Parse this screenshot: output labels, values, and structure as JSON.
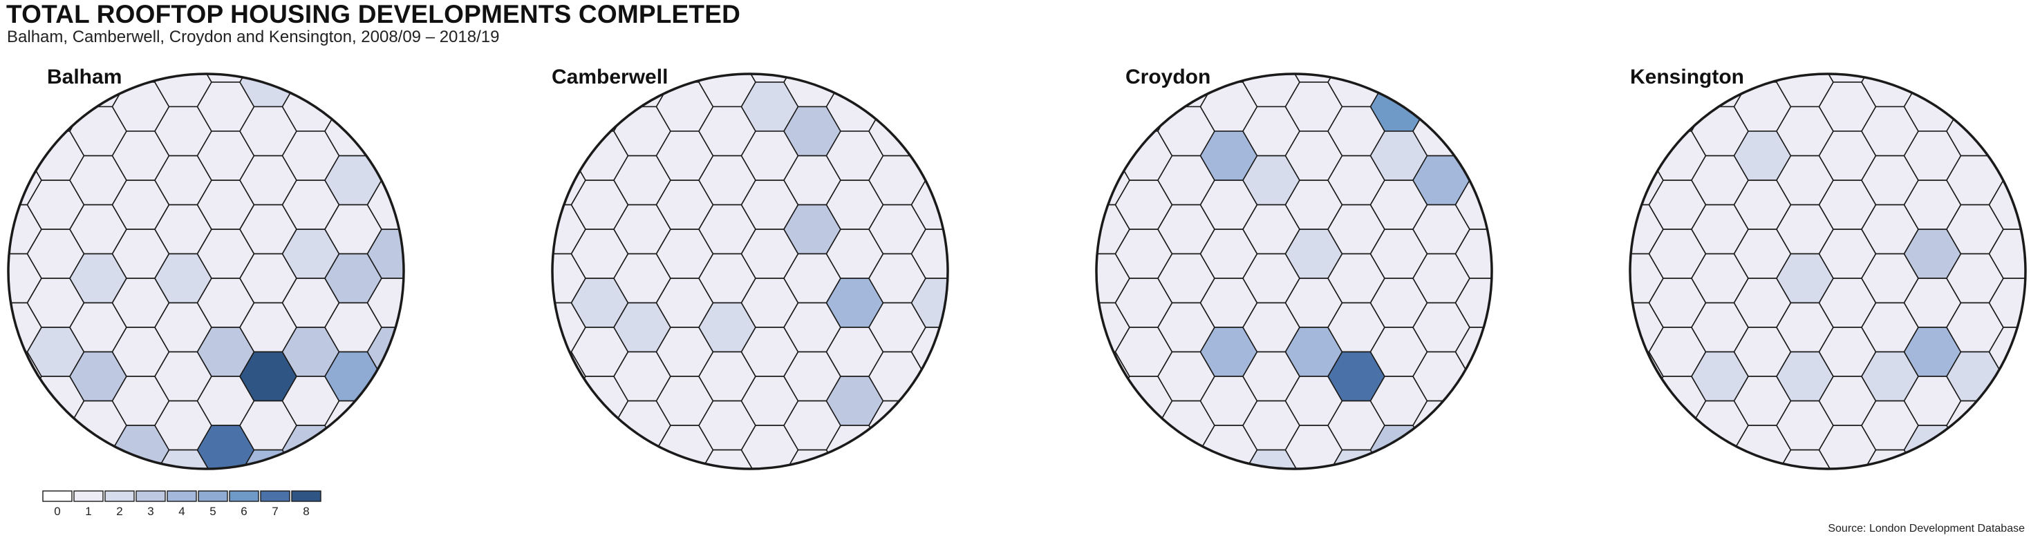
{
  "header": {
    "title": "TOTAL ROOFTOP HOUSING DEVELOPMENTS COMPLETED",
    "subtitle": "Balham, Camberwell, Croydon and Kensington, 2008/09 – 2018/19"
  },
  "source": "Source: London Development Database",
  "colors": {
    "scale": [
      "#ffffff",
      "#eeedf5",
      "#d7dcec",
      "#bec8e0",
      "#a3b8da",
      "#8fabd4",
      "#6f9ac8",
      "#4a72a8",
      "#2f5585"
    ],
    "hex_stroke": "#1a1a1a",
    "circle_stroke": "#1a1a1a"
  },
  "legend": {
    "values": [
      "0",
      "1",
      "2",
      "3",
      "4",
      "5",
      "6",
      "7",
      "8"
    ]
  },
  "panels": [
    {
      "name": "Balham",
      "cells": [
        {
          "c": 6,
          "r": 0,
          "v": 2
        },
        {
          "c": 8,
          "r": 0,
          "v": 2
        },
        {
          "c": 10,
          "r": 0,
          "v": 2
        },
        {
          "c": 9,
          "r": 1,
          "v": 3
        },
        {
          "c": 11,
          "r": 1,
          "v": 2
        },
        {
          "c": 14,
          "r": 1,
          "v": 2
        },
        {
          "c": 8,
          "r": 2,
          "v": 2
        },
        {
          "c": 12,
          "r": 2,
          "v": 2
        },
        {
          "c": 7,
          "r": 3,
          "v": 2
        },
        {
          "c": 9,
          "r": 3,
          "v": 3
        },
        {
          "c": 11,
          "r": 3,
          "v": 2
        },
        {
          "c": 2,
          "r": 4,
          "v": 2
        },
        {
          "c": 4,
          "r": 4,
          "v": 2
        },
        {
          "c": 8,
          "r": 4,
          "v": 3
        },
        {
          "c": 10,
          "r": 4,
          "v": 2
        },
        {
          "c": 1,
          "r": 5,
          "v": 2
        },
        {
          "c": 5,
          "r": 5,
          "v": 3
        },
        {
          "c": 7,
          "r": 5,
          "v": 3
        },
        {
          "c": 9,
          "r": 5,
          "v": 3
        },
        {
          "c": 11,
          "r": 5,
          "v": 5
        },
        {
          "c": 2,
          "r": 6,
          "v": 3
        },
        {
          "c": 6,
          "r": 6,
          "v": 8
        },
        {
          "c": 8,
          "r": 6,
          "v": 5
        },
        {
          "c": 10,
          "r": 6,
          "v": 2
        },
        {
          "c": 3,
          "r": 7,
          "v": 3
        },
        {
          "c": 5,
          "r": 7,
          "v": 7
        },
        {
          "c": 7,
          "r": 7,
          "v": 3
        },
        {
          "c": 9,
          "r": 7,
          "v": 2
        },
        {
          "c": 11,
          "r": 7,
          "v": 2
        },
        {
          "c": 4,
          "r": 8,
          "v": 2
        },
        {
          "c": 6,
          "r": 8,
          "v": 4
        },
        {
          "c": 10,
          "r": 8,
          "v": 2
        }
      ]
    },
    {
      "name": "Camberwell",
      "cells": [
        {
          "c": 5,
          "r": 0,
          "v": 2
        },
        {
          "c": 6,
          "r": 1,
          "v": 3
        },
        {
          "c": 6,
          "r": 3,
          "v": 3
        },
        {
          "c": 10,
          "r": 3,
          "v": 2
        },
        {
          "c": 1,
          "r": 4,
          "v": 2
        },
        {
          "c": 7,
          "r": 4,
          "v": 4
        },
        {
          "c": 9,
          "r": 4,
          "v": 2
        },
        {
          "c": 2,
          "r": 5,
          "v": 2
        },
        {
          "c": 4,
          "r": 5,
          "v": 2
        },
        {
          "c": 10,
          "r": 5,
          "v": 2
        },
        {
          "c": 12,
          "r": 5,
          "v": 2
        },
        {
          "c": 7,
          "r": 6,
          "v": 3
        },
        {
          "c": 9,
          "r": 6,
          "v": 2
        },
        {
          "c": 13,
          "r": 6,
          "v": 2
        },
        {
          "c": 12,
          "r": 8,
          "v": 2
        }
      ]
    },
    {
      "name": "Croydon",
      "cells": [
        {
          "c": 7,
          "r": 0,
          "v": 6
        },
        {
          "c": 11,
          "r": 0,
          "v": 2
        },
        {
          "c": 3,
          "r": 1,
          "v": 4
        },
        {
          "c": 7,
          "r": 1,
          "v": 2
        },
        {
          "c": 11,
          "r": 1,
          "v": 2
        },
        {
          "c": 13,
          "r": 1,
          "v": 2
        },
        {
          "c": 4,
          "r": 2,
          "v": 2
        },
        {
          "c": 8,
          "r": 2,
          "v": 4
        },
        {
          "c": 5,
          "r": 3,
          "v": 2
        },
        {
          "c": 3,
          "r": 5,
          "v": 4
        },
        {
          "c": 5,
          "r": 5,
          "v": 4
        },
        {
          "c": 6,
          "r": 6,
          "v": 7
        },
        {
          "c": 10,
          "r": 6,
          "v": 4
        },
        {
          "c": 7,
          "r": 7,
          "v": 3
        },
        {
          "c": 11,
          "r": 7,
          "v": 2
        },
        {
          "c": 4,
          "r": 8,
          "v": 2
        },
        {
          "c": 6,
          "r": 8,
          "v": 2
        },
        {
          "c": 8,
          "r": 8,
          "v": 2
        },
        {
          "c": 10,
          "r": 8,
          "v": 4
        },
        {
          "c": 7,
          "r": 9,
          "v": 2
        }
      ]
    },
    {
      "name": "Kensington",
      "cells": [
        {
          "c": 3,
          "r": 1,
          "v": 2
        },
        {
          "c": 7,
          "r": 3,
          "v": 3
        },
        {
          "c": 4,
          "r": 4,
          "v": 2
        },
        {
          "c": 10,
          "r": 4,
          "v": 2
        },
        {
          "c": 12,
          "r": 4,
          "v": 2
        },
        {
          "c": 7,
          "r": 5,
          "v": 4
        },
        {
          "c": 11,
          "r": 5,
          "v": 2
        },
        {
          "c": 2,
          "r": 6,
          "v": 2
        },
        {
          "c": 4,
          "r": 6,
          "v": 2
        },
        {
          "c": 6,
          "r": 6,
          "v": 2
        },
        {
          "c": 8,
          "r": 6,
          "v": 2
        },
        {
          "c": 12,
          "r": 6,
          "v": 2
        },
        {
          "c": 14,
          "r": 6,
          "v": 2
        },
        {
          "c": 1,
          "r": 7,
          "v": 2
        },
        {
          "c": 7,
          "r": 7,
          "v": 2
        },
        {
          "c": 9,
          "r": 7,
          "v": 2
        },
        {
          "c": 8,
          "r": 8,
          "v": 2
        },
        {
          "c": 10,
          "r": 8,
          "v": 2
        }
      ]
    }
  ]
}
